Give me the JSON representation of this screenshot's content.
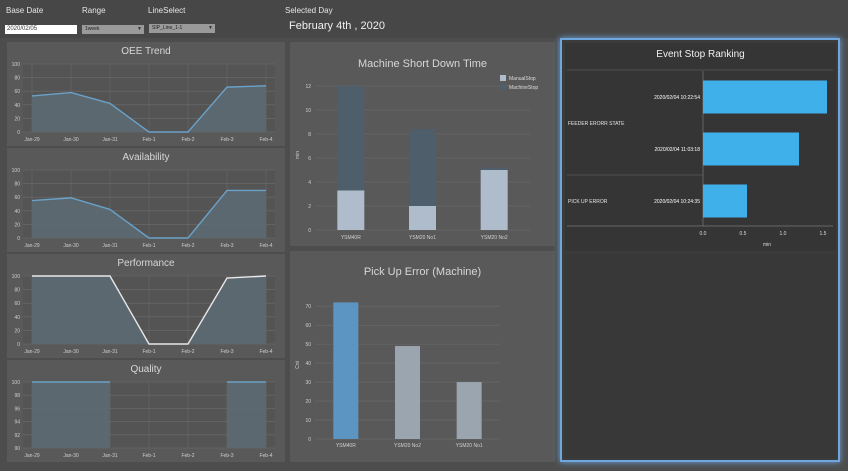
{
  "filters": {
    "base_date_label": "Base Date",
    "base_date_value": "2020/02/05",
    "range_label": "Range",
    "range_value": "1week",
    "line_label": "LineSelect",
    "line_value": "SIP_Line_1-1",
    "selected_day_label": "Selected Day",
    "selected_day_value": "February 4th , 2020"
  },
  "trends": {
    "categories": [
      "Jan-29",
      "Jan-30",
      "Jan-31",
      "Feb-1",
      "Feb-2",
      "Feb-3",
      "Feb-4"
    ],
    "charts": [
      {
        "key": "oee",
        "title": "OEE Trend",
        "ylim": [
          0,
          100
        ],
        "ticks": [
          0,
          20,
          40,
          60,
          80,
          100
        ],
        "values": [
          53,
          58,
          42,
          0,
          0,
          66,
          68
        ],
        "line_color": "#6aa1c8"
      },
      {
        "key": "availability",
        "title": "Availability",
        "ylim": [
          0,
          100
        ],
        "ticks": [
          0,
          20,
          40,
          60,
          80,
          100
        ],
        "values": [
          55,
          59,
          42,
          0,
          0,
          70,
          70
        ],
        "line_color": "#6aa1c8"
      },
      {
        "key": "performance",
        "title": "Performance",
        "ylim": [
          0,
          100
        ],
        "ticks": [
          0,
          20,
          40,
          60,
          80,
          100
        ],
        "values": [
          100,
          100,
          100,
          0,
          0,
          97,
          100
        ],
        "line_color": "#e8e8e8"
      },
      {
        "key": "quality",
        "title": "Quality",
        "ylim": [
          90,
          100
        ],
        "ticks": [
          90,
          92,
          94,
          96,
          98,
          100
        ],
        "values": [
          100,
          100,
          100,
          null,
          null,
          100,
          100
        ],
        "line_color": "#6aa1c8"
      }
    ]
  },
  "chart_data": [
    {
      "type": "bar",
      "title": "Machine Short Down Time",
      "ylabel": "min",
      "categories": [
        "YSM40R",
        "YSM20 No1",
        "YSM20 No2"
      ],
      "series": [
        {
          "name": "ManualStop",
          "values": [
            3.3,
            2.0,
            5.0
          ],
          "color": "#aebccc"
        },
        {
          "name": "MachineStop",
          "values": [
            8.7,
            6.4,
            0.2
          ],
          "color": "#4f5e6b"
        }
      ],
      "ylim": [
        0,
        12.5
      ],
      "ticks": [
        0,
        2,
        4,
        6,
        8,
        10,
        12
      ],
      "stacked": true,
      "legend": "top-right"
    },
    {
      "type": "bar",
      "title": "Pick Up Error (Machine)",
      "ylabel": "Cnt",
      "categories": [
        "YSM40R",
        "YSM20 No2",
        "YSM20 No1"
      ],
      "values": [
        72,
        49,
        30
      ],
      "colors": [
        "#5d95c2",
        "#9aa5b0",
        "#9aa5b0"
      ],
      "ylim": [
        0,
        78
      ],
      "ticks": [
        0,
        10,
        20,
        30,
        40,
        50,
        60,
        70
      ]
    },
    {
      "type": "bar",
      "orientation": "horizontal",
      "title": "Event Stop Ranking",
      "xlabel": "min",
      "groups": [
        {
          "label": "FEEDER ERORR STATE",
          "items": [
            {
              "label": "2020/02/04 10:22:54",
              "value": 1.55
            },
            {
              "label": "2020/02/04 11:03:18",
              "value": 1.2
            }
          ]
        },
        {
          "label": "PICK UP ERROR",
          "items": [
            {
              "label": "2020/02/04 10:24:35",
              "value": 0.55
            }
          ]
        }
      ],
      "xlim": [
        0,
        1.6
      ],
      "ticks": [
        0.0,
        0.5,
        1.0,
        1.5
      ],
      "tick_labels": [
        "0.0",
        "0.5",
        "1.0",
        "1.5"
      ],
      "bar_color": "#3fb0ea"
    }
  ]
}
